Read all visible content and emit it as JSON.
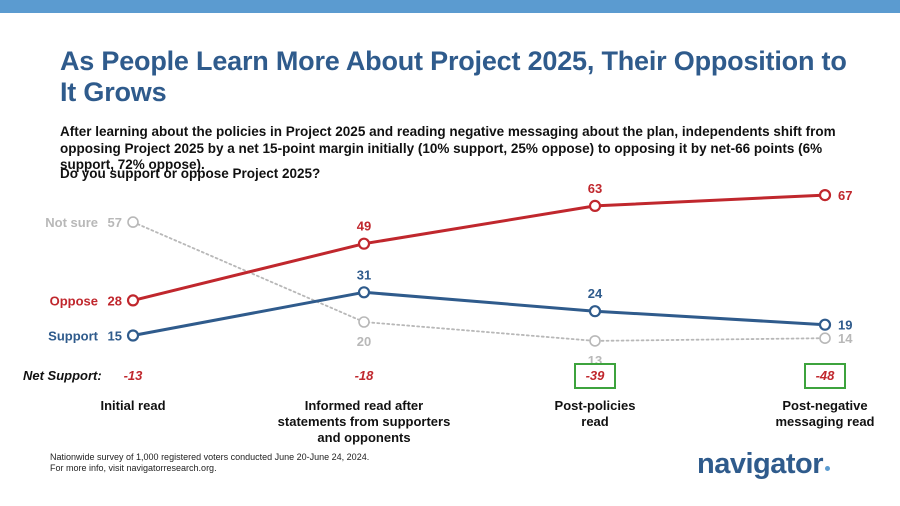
{
  "header": {
    "title": "As People Learn More About Project 2025, Their Opposition to It Grows",
    "subtitle": "After learning about the policies in Project 2025 and reading negative messaging about the plan, independents shift from opposing Project 2025 by a net 15-point margin initially (10% support, 25% oppose) to opposing it by net-66 points (6% support, 72% oppose).",
    "question": "Do you support or oppose Project 2025?"
  },
  "colors": {
    "oppose": "#c0272d",
    "support": "#2f5b8c",
    "not_sure": "#b8b8b8",
    "accent_bar": "#5b9bd0",
    "box": "#3da33d"
  },
  "chart_data": {
    "type": "line",
    "categories": [
      "Initial read",
      "Informed read after statements from supporters and opponents",
      "Post-policies read",
      "Post-negative messaging read"
    ],
    "series": [
      {
        "name": "Oppose",
        "values": [
          28,
          49,
          63,
          67
        ]
      },
      {
        "name": "Support",
        "values": [
          15,
          31,
          24,
          19
        ]
      },
      {
        "name": "Not sure",
        "values": [
          57,
          20,
          13,
          14
        ]
      }
    ],
    "ylim": [
      10,
      70
    ],
    "grid": false,
    "legend": "left, inline at first point",
    "net_support": {
      "label": "Net Support:",
      "values": [
        "-13",
        "-18",
        "-39",
        "-48"
      ],
      "boxed": [
        false,
        false,
        true,
        true
      ]
    }
  },
  "stages": {
    "labels": [
      [
        "Initial read"
      ],
      [
        "Informed read after",
        "statements from supporters",
        "and opponents"
      ],
      [
        "Post-policies",
        "read"
      ],
      [
        "Post-negative",
        "messaging read"
      ]
    ]
  },
  "footer": {
    "note_line1": "Nationwide survey of 1,000 registered voters conducted June 20-June 24, 2024.",
    "note_line2": "For more info, visit navigatorresearch.org.",
    "logo": "navigator"
  }
}
